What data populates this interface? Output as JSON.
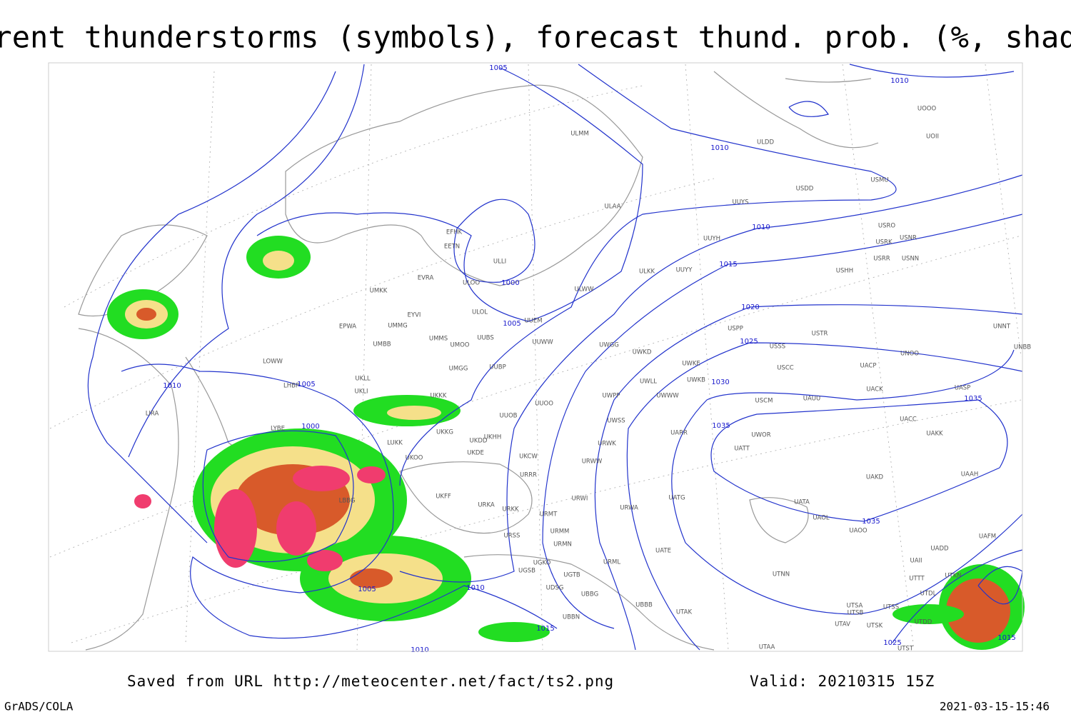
{
  "title": "Current thunderstorms (symbols), forecast thund. prob. (%, shaded)",
  "isobar_labels": [
    "1005",
    "1010",
    "1010",
    "1010",
    "1015",
    "1020",
    "1025",
    "1030",
    "1035",
    "1035",
    "1035",
    "1000",
    "1005",
    "1010",
    "1005",
    "1000",
    "1005",
    "1010",
    "1015",
    "1025",
    "1015",
    "1010"
  ],
  "stations": [
    "ULMM",
    "ULDD",
    "USDD",
    "USMU",
    "UUYS",
    "ULAA",
    "UUYH",
    "USRO",
    "USRK",
    "USNR",
    "USRR",
    "USNN",
    "EFHK",
    "EETN",
    "ULLI",
    "ULOO",
    "EVRA",
    "UMKK",
    "ULWW",
    "ULKK",
    "UUYY",
    "USHH",
    "ULOL",
    "EYVI",
    "UUEM",
    "EPWA",
    "UMMG",
    "UMMS",
    "UMOO",
    "UUBS",
    "UUWW",
    "UWGG",
    "UWKD",
    "USPP",
    "USTR",
    "USSS",
    "UNOO",
    "UNNT",
    "UNBB",
    "UMBB",
    "LOWW",
    "UKLL",
    "UMGG",
    "UUBP",
    "UWKE",
    "UWLL",
    "UWKB",
    "USCC",
    "UACP",
    "UKLI",
    "LHBP",
    "UKKK",
    "UUOO",
    "UWPP",
    "UWWW",
    "USCM",
    "UAUU",
    "UACK",
    "UASP",
    "LIRA",
    "LYBE",
    "UKHH",
    "UKDD",
    "UKKG",
    "UUOB",
    "UWSS",
    "UARR",
    "UWOR",
    "UACC",
    "UAKK",
    "UATT",
    "LUKK",
    "UKOO",
    "UKDE",
    "URWK",
    "UKCW",
    "URWW",
    "URRR",
    "UAKD",
    "UAAH",
    "UKFF",
    "URKA",
    "URKK",
    "URWI",
    "UATG",
    "URWA",
    "UATA",
    "UAOL",
    "UAOO",
    "UAFM",
    "LBBG",
    "URMT",
    "URMM",
    "URSS",
    "UATE",
    "URMN",
    "URML",
    "UGKO",
    "UGTB",
    "UTNN",
    "UAII",
    "UADD",
    "UTTT",
    "UTKN",
    "UGSB",
    "UDSG",
    "UBBG",
    "UTDL",
    "UBBB",
    "UTAK",
    "UBBN",
    "UTSA",
    "UTSS",
    "UTSB",
    "UTAV",
    "UTSK",
    "UTDD",
    "UTAA",
    "UTST",
    "UOOO",
    "UOII"
  ],
  "footer": {
    "source": "Saved from URL http://meteocenter.net/fact/ts2.png",
    "valid": "Valid: 20210315 15Z",
    "software": "GrADS/COLA",
    "timestamp": "2021-03-15-15:46"
  }
}
